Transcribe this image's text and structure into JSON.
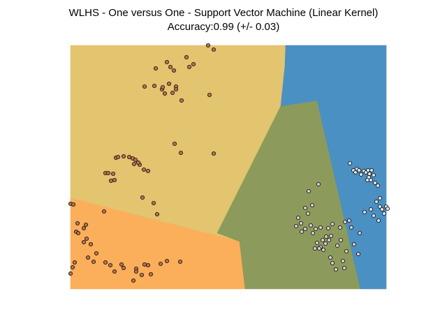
{
  "chart_data": {
    "type": "scatter",
    "title": "WLHS - One versus One - Support Vector Machine (Linear Kernel)",
    "subtitle": "Accuracy:0.99 (+/- 0.03)",
    "xlabel": "",
    "ylabel": "",
    "xlim": [
      0,
      452
    ],
    "ylim": [
      0,
      349
    ],
    "axes_visible": false,
    "grid": false,
    "colors": {
      "region_a": "#e3c46f",
      "region_b": "#fbaf5a",
      "region_c": "#8c9b5b",
      "region_d": "#4a90c2",
      "class_1_point": "#c0704a",
      "class_2_point": "#dbc9d2",
      "class_3_point": "#d6e3f0",
      "point_edge": "#1a1a1a"
    },
    "regions": [
      {
        "class": "region_a",
        "polygon": [
          [
            0,
            349
          ],
          [
            308,
            349
          ],
          [
            307,
            320
          ],
          [
            301,
            262
          ],
          [
            210,
            80
          ],
          [
            242,
            68
          ],
          [
            0,
            130
          ]
        ]
      },
      {
        "class": "region_b",
        "polygon": [
          [
            0,
            130
          ],
          [
            242,
            68
          ],
          [
            250,
            0
          ],
          [
            0,
            0
          ]
        ]
      },
      {
        "class": "region_c",
        "polygon": [
          [
            210,
            80
          ],
          [
            242,
            68
          ],
          [
            250,
            0
          ],
          [
            415,
            0
          ],
          [
            353,
            270
          ],
          [
            301,
            262
          ]
        ]
      },
      {
        "class": "region_d",
        "polygon": [
          [
            308,
            349
          ],
          [
            452,
            349
          ],
          [
            452,
            0
          ],
          [
            415,
            0
          ],
          [
            353,
            270
          ],
          [
            301,
            262
          ],
          [
            307,
            320
          ]
        ]
      }
    ],
    "series": [
      {
        "class": "class_1",
        "color_key": "class_1_point",
        "points": [
          [
            197,
            349
          ],
          [
            205,
            343
          ],
          [
            166,
            332
          ],
          [
            138,
            325
          ],
          [
            176,
            322
          ],
          [
            143,
            318
          ],
          [
            148,
            313
          ],
          [
            170,
            318
          ],
          [
            122,
            316
          ],
          [
            141,
            294
          ],
          [
            151,
            290
          ],
          [
            120,
            291
          ],
          [
            106,
            290
          ],
          [
            131,
            286
          ],
          [
            135,
            280
          ],
          [
            132,
            289
          ],
          [
            146,
            281
          ],
          [
            151,
            286
          ],
          [
            159,
            270
          ],
          [
            199,
            278
          ],
          [
            158,
            195
          ],
          [
            205,
            194
          ],
          [
            149,
            208
          ],
          [
            65,
            188
          ],
          [
            68,
            189
          ],
          [
            76,
            190
          ],
          [
            84,
            189
          ],
          [
            89,
            187
          ],
          [
            93,
            185
          ],
          [
            99,
            178
          ],
          [
            91,
            179
          ],
          [
            97,
            181
          ],
          [
            105,
            171
          ],
          [
            111,
            169
          ],
          [
            50,
            166
          ],
          [
            61,
            165
          ],
          [
            54,
            166
          ],
          [
            63,
            156
          ],
          [
            58,
            155
          ],
          [
            103,
            131
          ],
          [
            119,
            123
          ],
          [
            124,
            107
          ],
          [
            0,
            122
          ],
          [
            4,
            121
          ],
          [
            10,
            94
          ],
          [
            19,
            87
          ],
          [
            22,
            92
          ],
          [
            8,
            82
          ],
          [
            11,
            80
          ],
          [
            23,
            72
          ],
          [
            19,
            67
          ],
          [
            48,
            111
          ],
          [
            29,
            64
          ],
          [
            37,
            51
          ],
          [
            25,
            45
          ],
          [
            33,
            39
          ],
          [
            50,
            38
          ],
          [
            57,
            34
          ],
          [
            73,
            35
          ],
          [
            63,
            25
          ],
          [
            76,
            30
          ],
          [
            94,
            29
          ],
          [
            90,
            12
          ],
          [
            94,
            25
          ],
          [
            106,
            35
          ],
          [
            102,
            20
          ],
          [
            115,
            21
          ],
          [
            111,
            34
          ],
          [
            129,
            36
          ],
          [
            138,
            40
          ],
          [
            157,
            39
          ],
          [
            6,
            38
          ],
          [
            3,
            31
          ],
          [
            0,
            22
          ]
        ]
      },
      {
        "class": "class_2",
        "color_key": "class_2_point",
        "points": [
          [
            355,
            150
          ],
          [
            346,
            120
          ],
          [
            341,
            140
          ],
          [
            336,
            116
          ],
          [
            340,
            108
          ],
          [
            330,
            94
          ],
          [
            326,
            102
          ],
          [
            323,
            90
          ],
          [
            336,
            86
          ],
          [
            344,
            91
          ],
          [
            331,
            82
          ],
          [
            347,
            80
          ],
          [
            351,
            86
          ],
          [
            358,
            88
          ],
          [
            366,
            75
          ],
          [
            370,
            70
          ],
          [
            361,
            70
          ],
          [
            358,
            60
          ],
          [
            362,
            56
          ],
          [
            372,
            45
          ],
          [
            375,
            37
          ],
          [
            380,
            28
          ],
          [
            350,
            58
          ],
          [
            353,
            66
          ],
          [
            356,
            58
          ],
          [
            373,
            76
          ],
          [
            365,
            65
          ],
          [
            369,
            87
          ],
          [
            375,
            93
          ],
          [
            393,
            96
          ],
          [
            387,
            70
          ],
          [
            382,
            62
          ],
          [
            395,
            54
          ],
          [
            390,
            40
          ],
          [
            392,
            30
          ],
          [
            386,
            88
          ],
          [
            399,
            98
          ],
          [
            402,
            88
          ],
          [
            414,
            80
          ],
          [
            406,
            64
          ],
          [
            412,
            50
          ]
        ]
      },
      {
        "class": "class_3",
        "color_key": "class_3_point",
        "points": [
          [
            400,
            180
          ],
          [
            405,
            170
          ],
          [
            408,
            167
          ],
          [
            410,
            172
          ],
          [
            413,
            170
          ],
          [
            416,
            164
          ],
          [
            420,
            169
          ],
          [
            423,
            167
          ],
          [
            426,
            170
          ],
          [
            428,
            165
          ],
          [
            431,
            170
          ],
          [
            434,
            163
          ],
          [
            427,
            160
          ],
          [
            430,
            156
          ],
          [
            425,
            156
          ],
          [
            436,
            152
          ],
          [
            440,
            148
          ],
          [
            443,
            130
          ],
          [
            438,
            125
          ],
          [
            443,
            118
          ],
          [
            446,
            114
          ],
          [
            452,
            118
          ],
          [
            454,
            115
          ],
          [
            449,
            108
          ],
          [
            430,
            114
          ],
          [
            421,
            110
          ],
          [
            434,
            105
          ],
          [
            441,
            98
          ]
        ]
      }
    ]
  }
}
